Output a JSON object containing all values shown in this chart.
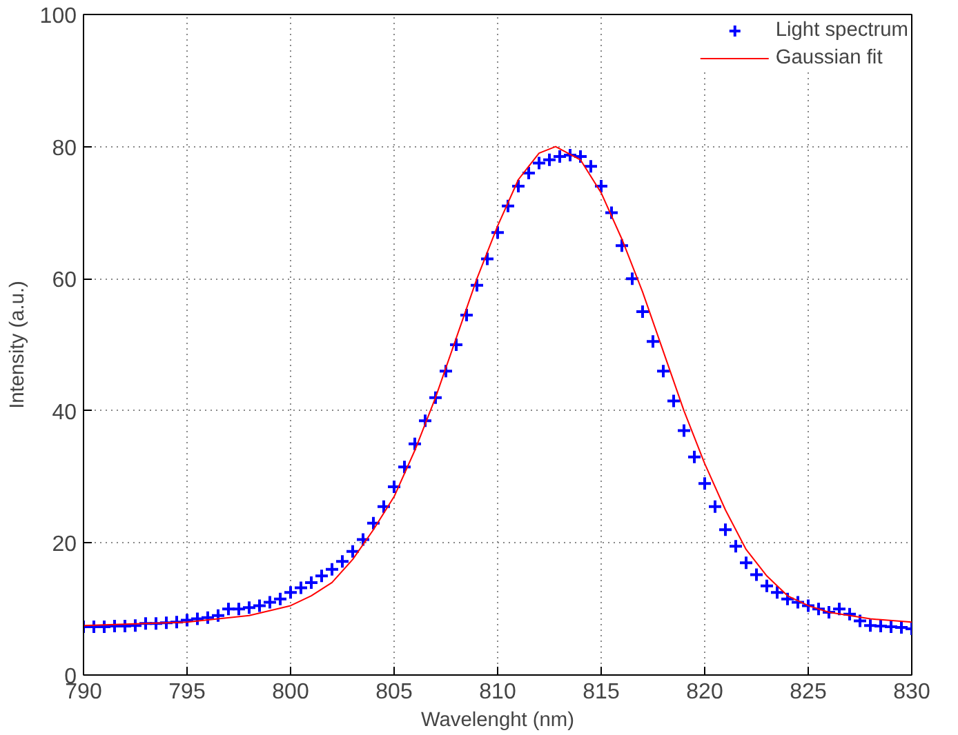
{
  "chart_data": {
    "type": "scatter",
    "xlabel": "Wavelenght (nm)",
    "ylabel": "Intensity (a.u.)",
    "xlim": [
      790,
      830
    ],
    "ylim": [
      0,
      100
    ],
    "xticks": [
      790,
      795,
      800,
      805,
      810,
      815,
      820,
      825,
      830
    ],
    "yticks": [
      0,
      20,
      40,
      60,
      80,
      100
    ],
    "grid": true,
    "legend": "top right",
    "marker": "cross",
    "series": [
      {
        "name": "Light spectrum",
        "color": "#0000ff",
        "x": [
          790,
          790.5,
          791,
          791.5,
          792,
          792.5,
          793,
          793.5,
          794,
          794.5,
          795,
          795.5,
          796,
          796.5,
          797,
          797.5,
          798,
          798.5,
          799,
          799.5,
          800,
          800.5,
          801,
          801.5,
          802,
          802.5,
          803,
          803.5,
          804,
          804.5,
          805,
          805.5,
          806,
          806.5,
          807,
          807.5,
          808,
          808.5,
          809,
          809.5,
          810,
          810.5,
          811,
          811.5,
          812,
          812.5,
          813,
          813.5,
          814,
          814.5,
          815,
          815.5,
          816,
          816.5,
          817,
          817.5,
          818,
          818.5,
          819,
          819.5,
          820,
          820.5,
          821,
          821.5,
          822,
          822.5,
          823,
          823.5,
          824,
          824.5,
          825,
          825.5,
          826,
          826.5,
          827,
          827.5,
          828,
          828.5,
          829,
          829.5,
          830
        ],
        "values": [
          7.3,
          7.3,
          7.3,
          7.4,
          7.4,
          7.5,
          7.8,
          7.8,
          7.9,
          8,
          8.3,
          8.5,
          8.7,
          9,
          10,
          10,
          10.2,
          10.5,
          11,
          11.5,
          12.5,
          13.2,
          14,
          15,
          16,
          17.2,
          18.7,
          20.5,
          23,
          25.5,
          28.5,
          31.5,
          35,
          38.5,
          42,
          46,
          50,
          54.5,
          59,
          63,
          67,
          71,
          74,
          76,
          77.5,
          78,
          78.5,
          78.7,
          78.5,
          77,
          74,
          70,
          65,
          60,
          55,
          50.5,
          46,
          41.5,
          37,
          33,
          29,
          25.5,
          22,
          19.5,
          17,
          15.2,
          13.5,
          12.5,
          11.5,
          11,
          10.5,
          10,
          9.5,
          10,
          9.2,
          8.2,
          7.5,
          7.4,
          7.3,
          7.2,
          7
        ]
      },
      {
        "name": "Gaussian fit",
        "color": "#ff0000",
        "type": "line",
        "marker": "none",
        "x": [
          790,
          795,
          798,
          800,
          801,
          802,
          803,
          804,
          805,
          806,
          807,
          808,
          809,
          810,
          811,
          812,
          812.8,
          814,
          815,
          816,
          817,
          818,
          819,
          820,
          821,
          822,
          823,
          824,
          825,
          826,
          827,
          828,
          830
        ],
        "values": [
          7.5,
          8,
          9,
          10.5,
          12,
          14,
          17.5,
          22,
          27,
          34,
          42,
          51,
          60,
          68,
          75,
          79,
          80,
          78,
          73,
          66,
          58,
          49,
          40,
          32,
          25,
          19,
          15,
          12,
          10.5,
          9.5,
          9,
          8.5,
          8
        ]
      }
    ]
  }
}
